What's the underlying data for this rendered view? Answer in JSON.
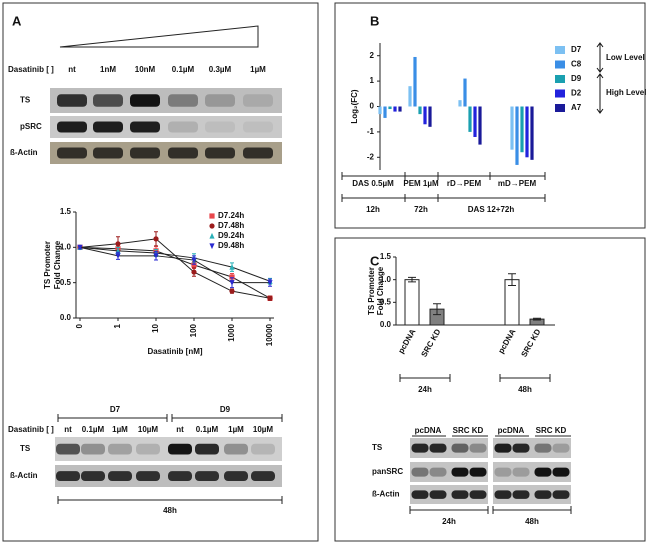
{
  "panel_labels": [
    "A",
    "B",
    "C"
  ],
  "blot_a1": {
    "title": "Dasatinib [ ]",
    "lanes": [
      "nt",
      "1nM",
      "10nM",
      "0.1µM",
      "0.3µM",
      "1µM"
    ],
    "rows": [
      "TS",
      "pSRC",
      "ß-Actin"
    ]
  },
  "blot_a2": {
    "title": "Dasatinib [ ]",
    "groups": [
      "D7",
      "D9"
    ],
    "lanes": [
      "nt",
      "0.1µM",
      "1µM",
      "10µM",
      "nt",
      "0.1µM",
      "1µM",
      "10µM"
    ],
    "rows": [
      "TS",
      "ß-Actin"
    ],
    "time": "48h"
  },
  "blot_c": {
    "lanes": [
      "pcDNA",
      "SRC KD"
    ],
    "rows": [
      "TS",
      "panSRC",
      "ß-Actin"
    ],
    "times": [
      "24h",
      "48h"
    ]
  },
  "chart_data": [
    {
      "type": "line",
      "ylabel": [
        "TS Promoter",
        "Fold Change"
      ],
      "xlabel": "Dasatinib [nM]",
      "categories": [
        "0",
        "1",
        "10",
        "100",
        "1000",
        "10000"
      ],
      "ylim": [
        0,
        1.5
      ],
      "yticks": [
        {
          "value": 0,
          "label": "0.0"
        },
        {
          "value": 0.5,
          "label": "0.5"
        },
        {
          "value": 1,
          "label": "1.0"
        },
        {
          "value": 1.5,
          "label": "1.5"
        }
      ],
      "series": [
        {
          "name": "D7.24h",
          "color": "#e8474c",
          "marker": "square",
          "values": [
            1.0,
            0.98,
            0.95,
            0.75,
            0.58,
            0.28
          ],
          "errors": [
            0.02,
            0.05,
            0.06,
            0.05,
            0.05,
            0.03
          ]
        },
        {
          "name": "D7.48h",
          "color": "#9b1c1c",
          "marker": "circle",
          "values": [
            1.0,
            1.05,
            1.12,
            0.65,
            0.38,
            0.28
          ],
          "errors": [
            0.02,
            0.1,
            0.1,
            0.06,
            0.03,
            0.03
          ]
        },
        {
          "name": "D9.24h",
          "color": "#2ab0b8",
          "marker": "triangle-up",
          "values": [
            1.0,
            0.95,
            0.92,
            0.85,
            0.72,
            0.52
          ],
          "errors": [
            0.02,
            0.05,
            0.05,
            0.06,
            0.06,
            0.04
          ]
        },
        {
          "name": "D9.48h",
          "color": "#2a2ad0",
          "marker": "triangle-down",
          "values": [
            1.0,
            0.88,
            0.88,
            0.82,
            0.5,
            0.5
          ],
          "errors": [
            0.02,
            0.05,
            0.06,
            0.06,
            0.07,
            0.05
          ]
        }
      ]
    },
    {
      "type": "bar",
      "ylabel": "Log₂(FC)",
      "categories": [
        "DAS 0.5µM",
        "PEM 1µM",
        "rD→PEM",
        "mD→PEM"
      ],
      "time_groups": [
        "12h",
        "72h",
        "DAS 12+72h"
      ],
      "level_labels": [
        "Low Level",
        "High Level"
      ],
      "ylim": [
        -2.5,
        2.5
      ],
      "yticks": [
        -2,
        -1,
        0,
        1,
        2
      ],
      "series": [
        {
          "name": "D7",
          "color": "#7cc0f2",
          "values": [
            -0.3,
            0.8,
            0.25,
            -1.7
          ]
        },
        {
          "name": "C8",
          "color": "#3a8ee6",
          "values": [
            -0.45,
            1.95,
            1.1,
            -2.3
          ]
        },
        {
          "name": "D9",
          "color": "#1aa0b0",
          "values": [
            -0.1,
            -0.3,
            -1.0,
            -1.8
          ]
        },
        {
          "name": "D2",
          "color": "#2222dd",
          "values": [
            -0.2,
            -0.7,
            -1.2,
            -2.0
          ]
        },
        {
          "name": "A7",
          "color": "#1a1a99",
          "values": [
            -0.2,
            -0.8,
            -1.5,
            -2.1
          ]
        }
      ]
    },
    {
      "type": "errorbar",
      "ylabel": [
        "TS Promoter",
        "Fold Change"
      ],
      "categories": [
        "pcDNA",
        "SRC KD",
        "pcDNA",
        "SRC KD"
      ],
      "groups": [
        "24h",
        "48h"
      ],
      "values": [
        1.0,
        0.35,
        1.0,
        0.13
      ],
      "errors": [
        0.05,
        0.12,
        0.13,
        0.02
      ],
      "colors": [
        "#ffffff",
        "#808080",
        "#ffffff",
        "#808080"
      ],
      "ylim": [
        0,
        1.5
      ],
      "yticks": [
        {
          "value": 0,
          "label": "0.0"
        },
        {
          "value": 0.5,
          "label": "0.5"
        },
        {
          "value": 1,
          "label": "1.0"
        },
        {
          "value": 1.5,
          "label": "1.5"
        }
      ]
    }
  ]
}
